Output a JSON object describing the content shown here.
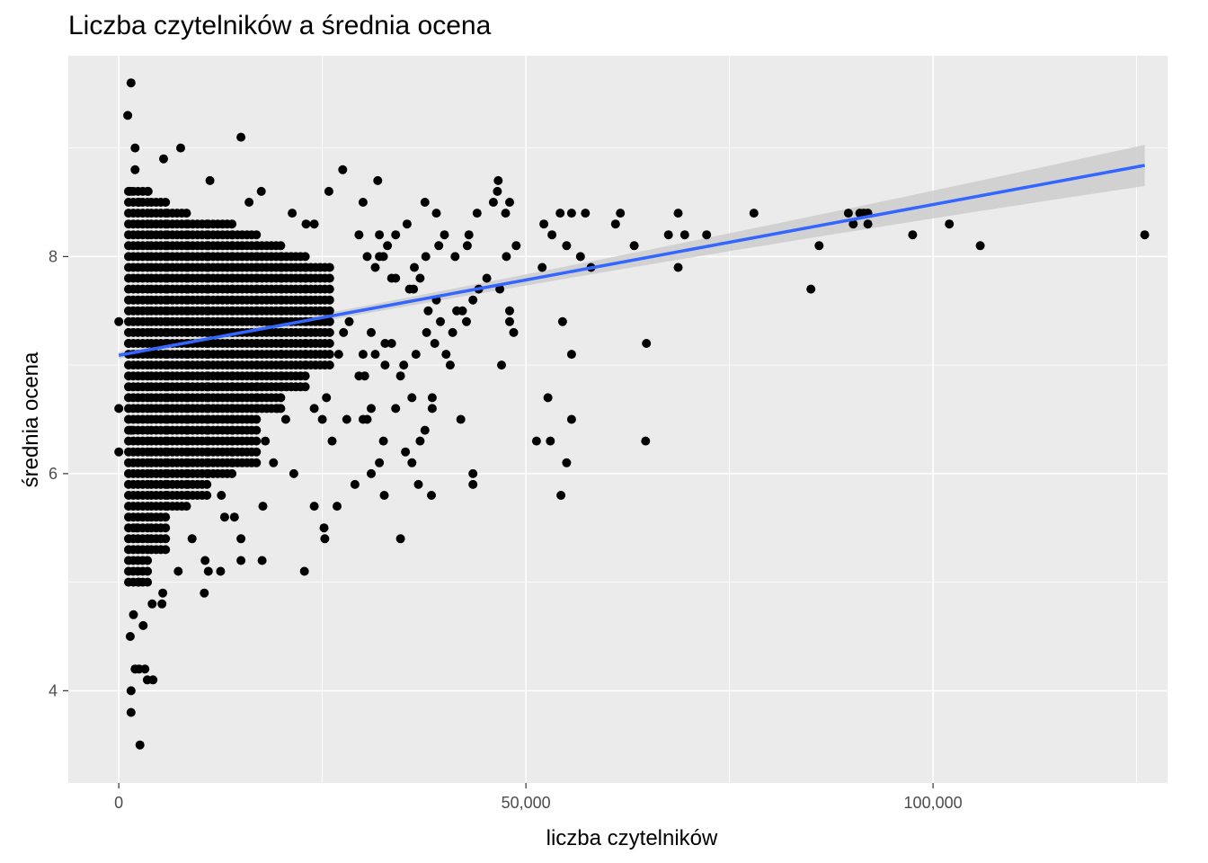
{
  "chart_data": {
    "type": "scatter",
    "title": "Liczba czytelników a średnia ocena",
    "xlabel": "liczba czytelników",
    "ylabel": "średnia ocena",
    "xlim": [
      -6200,
      128800
    ],
    "ylim": [
      3.15,
      9.85
    ],
    "x_ticks": [
      0,
      50000,
      100000
    ],
    "x_tick_labels": [
      "0",
      "50,000",
      "100,000"
    ],
    "y_ticks": [
      4,
      6,
      8
    ],
    "y_tick_labels": [
      "4",
      "6",
      "8"
    ],
    "grid": true,
    "background": "#ebebeb",
    "point_color": "#000000",
    "trend": {
      "method": "linear",
      "color": "#3366ff",
      "band_color": "#cccccc",
      "x": [
        0,
        126000
      ],
      "y": [
        7.09,
        8.84
      ],
      "band_halfwidth": [
        0.03,
        0.19
      ]
    },
    "points": [
      [
        0,
        7.4
      ],
      [
        0,
        6.6
      ],
      [
        0,
        6.2
      ],
      [
        1500,
        9.6
      ],
      [
        1100,
        9.3
      ],
      [
        2000,
        9.0
      ],
      [
        2000,
        8.8
      ],
      [
        1400,
        8.6
      ],
      [
        2500,
        8.5
      ],
      [
        3600,
        8.6
      ],
      [
        5500,
        8.9
      ],
      [
        7600,
        9.0
      ],
      [
        15000,
        9.1
      ],
      [
        11200,
        8.7
      ],
      [
        17500,
        8.6
      ],
      [
        16000,
        8.5
      ],
      [
        27500,
        8.8
      ],
      [
        31800,
        8.7
      ],
      [
        25800,
        8.6
      ],
      [
        30000,
        8.5
      ],
      [
        21300,
        8.4
      ],
      [
        24000,
        8.3
      ],
      [
        23000,
        8.3
      ],
      [
        1200,
        7.2
      ],
      [
        1500,
        6.4
      ],
      [
        2200,
        5.5
      ],
      [
        2500,
        5.0
      ],
      [
        1800,
        4.7
      ],
      [
        1400,
        4.5
      ],
      [
        2000,
        4.2
      ],
      [
        2500,
        4.2
      ],
      [
        3200,
        4.2
      ],
      [
        3500,
        4.1
      ],
      [
        4200,
        4.1
      ],
      [
        1500,
        4.0
      ],
      [
        1500,
        3.8
      ],
      [
        2600,
        3.5
      ],
      [
        3000,
        4.6
      ],
      [
        4100,
        4.8
      ],
      [
        5400,
        4.9
      ],
      [
        5300,
        4.8
      ],
      [
        10500,
        4.9
      ],
      [
        7300,
        5.1
      ],
      [
        10600,
        5.2
      ],
      [
        11000,
        5.1
      ],
      [
        12500,
        5.1
      ],
      [
        15000,
        5.2
      ],
      [
        17600,
        5.2
      ],
      [
        22800,
        5.1
      ],
      [
        15000,
        5.4
      ],
      [
        14200,
        5.6
      ],
      [
        13000,
        5.6
      ],
      [
        9000,
        5.4
      ],
      [
        12600,
        5.8
      ],
      [
        17700,
        5.7
      ],
      [
        24000,
        5.7
      ],
      [
        25200,
        5.5
      ],
      [
        25300,
        5.4
      ],
      [
        26800,
        5.7
      ],
      [
        21500,
        6.0
      ],
      [
        19000,
        6.1
      ],
      [
        18000,
        6.3
      ],
      [
        26200,
        6.3
      ],
      [
        25000,
        6.5
      ],
      [
        24000,
        6.6
      ],
      [
        25500,
        6.7
      ],
      [
        19500,
        6.6
      ],
      [
        20500,
        6.5
      ],
      [
        29000,
        5.9
      ],
      [
        31000,
        6.0
      ],
      [
        32000,
        6.1
      ],
      [
        32500,
        6.3
      ],
      [
        30500,
        6.5
      ],
      [
        30000,
        6.5
      ],
      [
        31000,
        6.6
      ],
      [
        28000,
        6.5
      ],
      [
        29500,
        6.9
      ],
      [
        30000,
        7.1
      ],
      [
        27000,
        7.1
      ],
      [
        31500,
        7.1
      ],
      [
        32700,
        7.2
      ],
      [
        33500,
        7.2
      ],
      [
        31000,
        7.3
      ],
      [
        32700,
        7.0
      ],
      [
        30200,
        6.9
      ],
      [
        27600,
        7.3
      ],
      [
        28300,
        7.4
      ],
      [
        32600,
        5.8
      ],
      [
        34000,
        6.6
      ],
      [
        34600,
        5.4
      ],
      [
        34600,
        6.9
      ],
      [
        35200,
        6.2
      ],
      [
        36800,
        5.9
      ],
      [
        38400,
        5.8
      ],
      [
        36000,
        6.1
      ],
      [
        37000,
        6.3
      ],
      [
        37600,
        6.4
      ],
      [
        38500,
        6.6
      ],
      [
        38500,
        6.7
      ],
      [
        36000,
        6.7
      ],
      [
        36500,
        7.1
      ],
      [
        35000,
        7.0
      ],
      [
        37800,
        7.3
      ],
      [
        38800,
        7.2
      ],
      [
        39500,
        7.4
      ],
      [
        40200,
        7.1
      ],
      [
        40700,
        7.0
      ],
      [
        41500,
        7.5
      ],
      [
        42200,
        7.5
      ],
      [
        42700,
        7.4
      ],
      [
        41000,
        7.3
      ],
      [
        39000,
        7.6
      ],
      [
        43500,
        7.6
      ],
      [
        44200,
        7.7
      ],
      [
        45200,
        7.8
      ],
      [
        47000,
        7.0
      ],
      [
        42000,
        6.5
      ],
      [
        43500,
        5.9
      ],
      [
        43500,
        6.0
      ],
      [
        46800,
        7.7
      ],
      [
        48000,
        7.5
      ],
      [
        48000,
        7.4
      ],
      [
        48500,
        7.3
      ],
      [
        37000,
        7.8
      ],
      [
        37700,
        8.0
      ],
      [
        36300,
        7.9
      ],
      [
        39300,
        8.1
      ],
      [
        40000,
        8.2
      ],
      [
        41300,
        8.0
      ],
      [
        43000,
        8.2
      ],
      [
        42800,
        8.1
      ],
      [
        44000,
        8.4
      ],
      [
        47500,
        8.4
      ],
      [
        46000,
        8.5
      ],
      [
        46500,
        8.6
      ],
      [
        48000,
        8.5
      ],
      [
        46600,
        8.7
      ],
      [
        39000,
        8.4
      ],
      [
        37600,
        8.5
      ],
      [
        48800,
        8.1
      ],
      [
        47600,
        8.0
      ],
      [
        34000,
        8.2
      ],
      [
        35400,
        8.3
      ],
      [
        32000,
        8.2
      ],
      [
        33000,
        8.1
      ],
      [
        32000,
        8.0
      ],
      [
        29500,
        8.2
      ],
      [
        30500,
        8.0
      ],
      [
        31500,
        7.9
      ],
      [
        32500,
        8.0
      ],
      [
        33500,
        7.8
      ],
      [
        34000,
        7.8
      ],
      [
        35700,
        7.7
      ],
      [
        36200,
        7.7
      ],
      [
        38000,
        7.5
      ],
      [
        52000,
        7.9
      ],
      [
        52200,
        8.3
      ],
      [
        53200,
        8.2
      ],
      [
        54200,
        8.4
      ],
      [
        55000,
        8.1
      ],
      [
        55600,
        8.4
      ],
      [
        57300,
        8.4
      ],
      [
        56700,
        8.0
      ],
      [
        58000,
        7.9
      ],
      [
        54500,
        7.4
      ],
      [
        55600,
        7.1
      ],
      [
        51300,
        6.3
      ],
      [
        52700,
        6.7
      ],
      [
        53000,
        6.3
      ],
      [
        55000,
        6.1
      ],
      [
        55600,
        6.5
      ],
      [
        54300,
        5.8
      ],
      [
        61000,
        8.3
      ],
      [
        61600,
        8.4
      ],
      [
        63300,
        8.1
      ],
      [
        64700,
        6.3
      ],
      [
        64800,
        7.2
      ],
      [
        67500,
        8.2
      ],
      [
        68700,
        8.4
      ],
      [
        69500,
        8.2
      ],
      [
        68700,
        7.9
      ],
      [
        72200,
        8.2
      ],
      [
        78000,
        8.4
      ],
      [
        85000,
        7.7
      ],
      [
        86000,
        8.1
      ],
      [
        89600,
        8.4
      ],
      [
        90200,
        8.3
      ],
      [
        91000,
        8.4
      ],
      [
        91500,
        8.4
      ],
      [
        92000,
        8.4
      ],
      [
        92000,
        8.3
      ],
      [
        97500,
        8.2
      ],
      [
        102000,
        8.3
      ],
      [
        105800,
        8.1
      ],
      [
        126000,
        8.2
      ]
    ],
    "dense_columns": [
      {
        "x": [
          1200,
          4000
        ],
        "y_min": 5.0,
        "y_max": 8.6
      },
      {
        "x": [
          4000,
          6000
        ],
        "y_min": 5.3,
        "y_max": 8.5
      },
      {
        "x": [
          6000,
          8500
        ],
        "y_min": 5.7,
        "y_max": 8.4
      },
      {
        "x": [
          8500,
          11000
        ],
        "y_min": 5.8,
        "y_max": 8.3
      },
      {
        "x": [
          11000,
          14000
        ],
        "y_min": 6.0,
        "y_max": 8.3
      },
      {
        "x": [
          14000,
          17000
        ],
        "y_min": 6.1,
        "y_max": 8.2
      },
      {
        "x": [
          17000,
          20000
        ],
        "y_min": 6.6,
        "y_max": 8.1
      },
      {
        "x": [
          20000,
          23000
        ],
        "y_min": 6.8,
        "y_max": 8.0
      },
      {
        "x": [
          23000,
          26000
        ],
        "y_min": 7.0,
        "y_max": 7.9
      }
    ]
  }
}
